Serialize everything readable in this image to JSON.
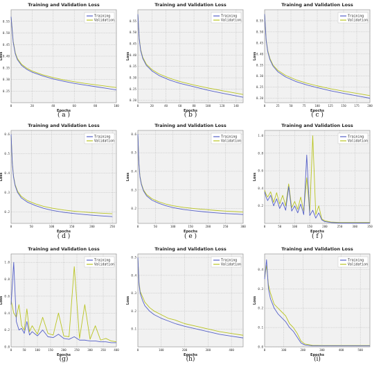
{
  "chart_data": [
    {
      "type": "line",
      "panel": "a",
      "caption": "( a )",
      "title": "Training and Validation Loss",
      "xlabel": "Epochs",
      "ylabel": "Loss",
      "xlim": [
        0,
        100
      ],
      "ylim": [
        0.2,
        0.6
      ],
      "xticks": [
        0,
        20,
        40,
        60,
        80,
        100
      ],
      "yticks": [
        0.25,
        0.3,
        0.35,
        0.4,
        0.45,
        0.5,
        0.55
      ],
      "ytick_labels": [
        "0.25",
        "0.30",
        "0.35",
        "0.40",
        "0.45",
        "0.50",
        "0.55"
      ],
      "legend_position": "top-right",
      "grid": true,
      "series": [
        {
          "name": "Training",
          "color": "#5560c8",
          "x": [
            0,
            2,
            4,
            6,
            10,
            15,
            20,
            30,
            40,
            50,
            60,
            70,
            80,
            90,
            100
          ],
          "values": [
            0.57,
            0.46,
            0.41,
            0.385,
            0.36,
            0.343,
            0.331,
            0.315,
            0.302,
            0.292,
            0.283,
            0.276,
            0.269,
            0.262,
            0.255
          ]
        },
        {
          "name": "Validation",
          "color": "#b9c421",
          "x": [
            0,
            2,
            4,
            6,
            10,
            15,
            20,
            30,
            40,
            50,
            60,
            70,
            80,
            90,
            100
          ],
          "values": [
            0.57,
            0.465,
            0.415,
            0.39,
            0.365,
            0.348,
            0.336,
            0.32,
            0.308,
            0.298,
            0.29,
            0.283,
            0.277,
            0.271,
            0.265
          ]
        }
      ]
    },
    {
      "type": "line",
      "panel": "b",
      "caption": "( b )",
      "title": "Training and Validation Loss",
      "xlabel": "Epochs",
      "ylabel": "Loss",
      "xlim": [
        0,
        150
      ],
      "ylim": [
        0.19,
        0.6
      ],
      "xticks": [
        0,
        20,
        40,
        60,
        80,
        100,
        120,
        140
      ],
      "yticks": [
        0.2,
        0.25,
        0.3,
        0.35,
        0.4,
        0.45,
        0.5,
        0.55
      ],
      "ytick_labels": [
        "0.20",
        "0.25",
        "0.30",
        "0.35",
        "0.40",
        "0.45",
        "0.50",
        "0.55"
      ],
      "legend_position": "top-right",
      "grid": true,
      "series": [
        {
          "name": "Training",
          "color": "#5560c8",
          "x": [
            0,
            2,
            4,
            7,
            12,
            20,
            30,
            45,
            60,
            80,
            100,
            120,
            140,
            150
          ],
          "values": [
            0.58,
            0.47,
            0.42,
            0.385,
            0.355,
            0.33,
            0.31,
            0.29,
            0.275,
            0.26,
            0.245,
            0.232,
            0.22,
            0.214
          ]
        },
        {
          "name": "Validation",
          "color": "#b9c421",
          "x": [
            0,
            2,
            4,
            7,
            12,
            20,
            30,
            45,
            60,
            80,
            100,
            120,
            140,
            150
          ],
          "values": [
            0.58,
            0.475,
            0.425,
            0.39,
            0.36,
            0.336,
            0.317,
            0.298,
            0.283,
            0.268,
            0.255,
            0.243,
            0.232,
            0.226
          ]
        }
      ]
    },
    {
      "type": "line",
      "panel": "c",
      "caption": "( c )",
      "title": "Training and Validation Loss",
      "xlabel": "Epochs",
      "ylabel": "Loss",
      "xlim": [
        0,
        200
      ],
      "ylim": [
        0.18,
        0.6
      ],
      "xticks": [
        0,
        25,
        50,
        75,
        100,
        125,
        150,
        175,
        200
      ],
      "yticks": [
        0.2,
        0.25,
        0.3,
        0.35,
        0.4,
        0.45,
        0.5,
        0.55
      ],
      "ytick_labels": [
        "0.20",
        "0.25",
        "0.30",
        "0.35",
        "0.40",
        "0.45",
        "0.50",
        "0.55"
      ],
      "legend_position": "top-right",
      "grid": true,
      "series": [
        {
          "name": "Training",
          "color": "#5560c8",
          "x": [
            0,
            3,
            6,
            10,
            16,
            25,
            40,
            60,
            80,
            100,
            125,
            150,
            175,
            200
          ],
          "values": [
            0.58,
            0.46,
            0.41,
            0.375,
            0.345,
            0.32,
            0.296,
            0.275,
            0.26,
            0.248,
            0.234,
            0.222,
            0.211,
            0.2
          ]
        },
        {
          "name": "Validation",
          "color": "#b9c421",
          "x": [
            0,
            3,
            6,
            10,
            16,
            25,
            40,
            60,
            80,
            100,
            125,
            150,
            175,
            200
          ],
          "values": [
            0.58,
            0.465,
            0.415,
            0.38,
            0.35,
            0.326,
            0.303,
            0.283,
            0.268,
            0.256,
            0.243,
            0.232,
            0.222,
            0.212
          ]
        }
      ]
    },
    {
      "type": "line",
      "panel": "d",
      "caption": "( d )",
      "title": "Training and Validation Loss",
      "xlabel": "Epochs",
      "ylabel": "Loss",
      "xlim": [
        0,
        260
      ],
      "ylim": [
        0.14,
        0.62
      ],
      "xticks": [
        0,
        50,
        100,
        150,
        200,
        250
      ],
      "yticks": [
        0.2,
        0.3,
        0.4,
        0.5,
        0.6
      ],
      "ytick_labels": [
        "0.2",
        "0.3",
        "0.4",
        "0.5",
        "0.6"
      ],
      "legend_position": "top-right",
      "grid": true,
      "series": [
        {
          "name": "Training",
          "color": "#5560c8",
          "x": [
            0,
            3,
            6,
            10,
            16,
            25,
            40,
            60,
            80,
            100,
            130,
            160,
            190,
            220,
            250
          ],
          "values": [
            0.6,
            0.45,
            0.38,
            0.335,
            0.3,
            0.272,
            0.25,
            0.232,
            0.218,
            0.208,
            0.197,
            0.19,
            0.184,
            0.179,
            0.175
          ]
        },
        {
          "name": "Validation",
          "color": "#b9c421",
          "x": [
            0,
            3,
            6,
            10,
            16,
            25,
            40,
            60,
            80,
            100,
            130,
            160,
            190,
            220,
            250
          ],
          "values": [
            0.6,
            0.455,
            0.385,
            0.34,
            0.306,
            0.28,
            0.258,
            0.241,
            0.228,
            0.219,
            0.209,
            0.202,
            0.197,
            0.193,
            0.19
          ]
        }
      ]
    },
    {
      "type": "line",
      "panel": "e",
      "caption": "( e )",
      "title": "Training and Validation Loss",
      "xlabel": "Epochs",
      "ylabel": "Loss",
      "xlim": [
        0,
        300
      ],
      "ylim": [
        0.12,
        0.62
      ],
      "xticks": [
        0,
        50,
        100,
        150,
        200,
        250,
        300
      ],
      "yticks": [
        0.2,
        0.3,
        0.4,
        0.5,
        0.6
      ],
      "ytick_labels": [
        "0.2",
        "0.3",
        "0.4",
        "0.5",
        "0.6"
      ],
      "legend_position": "top-right",
      "grid": true,
      "series": [
        {
          "name": "Training",
          "color": "#5560c8",
          "x": [
            0,
            3,
            6,
            10,
            16,
            25,
            40,
            60,
            80,
            100,
            130,
            160,
            190,
            220,
            250,
            280,
            300
          ],
          "values": [
            0.6,
            0.44,
            0.37,
            0.33,
            0.295,
            0.268,
            0.245,
            0.228,
            0.215,
            0.205,
            0.195,
            0.188,
            0.182,
            0.177,
            0.173,
            0.17,
            0.168
          ]
        },
        {
          "name": "Validation",
          "color": "#b9c421",
          "x": [
            0,
            3,
            6,
            10,
            16,
            25,
            40,
            60,
            80,
            100,
            130,
            160,
            190,
            220,
            250,
            280,
            300
          ],
          "values": [
            0.6,
            0.445,
            0.375,
            0.335,
            0.3,
            0.275,
            0.253,
            0.236,
            0.224,
            0.215,
            0.206,
            0.2,
            0.195,
            0.19,
            0.186,
            0.183,
            0.181
          ]
        }
      ]
    },
    {
      "type": "line",
      "panel": "f",
      "caption": "( f )",
      "title": "Training and Validation Loss",
      "xlabel": "Epochs",
      "ylabel": "Loss",
      "xlim": [
        0,
        350
      ],
      "ylim": [
        0,
        1.06
      ],
      "xticks": [
        0,
        50,
        100,
        150,
        200,
        250,
        300,
        350
      ],
      "yticks": [
        0.2,
        0.4,
        0.6,
        0.8,
        1.0
      ],
      "ytick_labels": [
        "0.2",
        "0.4",
        "0.6",
        "0.8",
        "1.0"
      ],
      "legend_position": "top-right",
      "grid": true,
      "series": [
        {
          "name": "Training",
          "color": "#5560c8",
          "x": [
            0,
            5,
            10,
            20,
            30,
            40,
            50,
            60,
            70,
            80,
            90,
            100,
            110,
            120,
            130,
            140,
            150,
            160,
            170,
            180,
            190,
            200,
            220,
            250,
            300,
            350
          ],
          "values": [
            0.36,
            0.3,
            0.26,
            0.32,
            0.2,
            0.28,
            0.17,
            0.24,
            0.15,
            0.42,
            0.14,
            0.2,
            0.12,
            0.22,
            0.1,
            0.78,
            0.09,
            0.15,
            0.06,
            0.12,
            0.04,
            0.02,
            0.01,
            0.005,
            0.005,
            0.005
          ]
        },
        {
          "name": "Validation",
          "color": "#b9c421",
          "x": [
            0,
            5,
            10,
            20,
            30,
            40,
            50,
            60,
            70,
            80,
            90,
            100,
            110,
            120,
            130,
            140,
            150,
            160,
            170,
            180,
            190,
            200,
            220,
            250,
            300,
            350
          ],
          "values": [
            0.38,
            0.33,
            0.3,
            0.36,
            0.24,
            0.35,
            0.22,
            0.32,
            0.2,
            0.45,
            0.18,
            0.25,
            0.16,
            0.3,
            0.14,
            0.52,
            0.12,
            1.0,
            0.1,
            0.2,
            0.05,
            0.03,
            0.015,
            0.01,
            0.01,
            0.01
          ]
        }
      ]
    },
    {
      "type": "line",
      "panel": "g",
      "caption": "(g)",
      "title": "Training and Validation Loss",
      "xlabel": "Epochs",
      "ylabel": "Loss",
      "xlim": [
        0,
        400
      ],
      "ylim": [
        0,
        1.1
      ],
      "xticks": [
        0,
        50,
        100,
        150,
        200,
        250,
        300,
        350,
        400
      ],
      "yticks": [
        0.0,
        0.2,
        0.4,
        0.6,
        0.8,
        1.0
      ],
      "ytick_labels": [
        "0.0",
        "0.2",
        "0.4",
        "0.6",
        "0.8",
        "1.0"
      ],
      "legend_position": "top-right",
      "grid": true,
      "series": [
        {
          "name": "Training",
          "color": "#5560c8",
          "x": [
            0,
            10,
            20,
            30,
            40,
            50,
            60,
            70,
            80,
            100,
            120,
            140,
            160,
            180,
            200,
            220,
            240,
            260,
            280,
            300,
            320,
            340,
            360,
            380,
            400
          ],
          "values": [
            0.5,
            1.0,
            0.3,
            0.2,
            0.22,
            0.16,
            0.3,
            0.14,
            0.18,
            0.13,
            0.2,
            0.12,
            0.11,
            0.15,
            0.1,
            0.09,
            0.12,
            0.08,
            0.08,
            0.07,
            0.07,
            0.06,
            0.06,
            0.05,
            0.05
          ]
        },
        {
          "name": "Validation",
          "color": "#b9c421",
          "x": [
            0,
            10,
            20,
            30,
            40,
            50,
            60,
            70,
            80,
            100,
            120,
            140,
            160,
            180,
            200,
            220,
            240,
            260,
            280,
            300,
            320,
            340,
            360,
            380,
            400
          ],
          "values": [
            0.55,
            0.4,
            0.35,
            0.5,
            0.25,
            0.2,
            0.45,
            0.18,
            0.25,
            0.15,
            0.35,
            0.16,
            0.14,
            0.4,
            0.13,
            0.12,
            0.95,
            0.1,
            0.5,
            0.09,
            0.25,
            0.08,
            0.1,
            0.07,
            0.06
          ]
        }
      ]
    },
    {
      "type": "line",
      "panel": "h",
      "caption": "(h)",
      "title": "Training and Validation Loss",
      "xlabel": "Epochs",
      "ylabel": "Loss",
      "xlim": [
        0,
        450
      ],
      "ylim": [
        0.0,
        0.52
      ],
      "xticks": [
        0,
        100,
        200,
        300,
        400
      ],
      "yticks": [
        0.1,
        0.2,
        0.3,
        0.4,
        0.5
      ],
      "ytick_labels": [
        "0.1",
        "0.2",
        "0.3",
        "0.4",
        "0.5"
      ],
      "legend_position": "top-right",
      "grid": true,
      "series": [
        {
          "name": "Training",
          "color": "#5560c8",
          "x": [
            0,
            5,
            10,
            20,
            30,
            50,
            70,
            100,
            130,
            160,
            200,
            250,
            300,
            350,
            400,
            450
          ],
          "values": [
            0.5,
            0.35,
            0.3,
            0.26,
            0.23,
            0.2,
            0.18,
            0.16,
            0.145,
            0.13,
            0.115,
            0.1,
            0.085,
            0.07,
            0.06,
            0.05
          ]
        },
        {
          "name": "Validation",
          "color": "#b9c421",
          "x": [
            0,
            5,
            10,
            20,
            30,
            50,
            70,
            100,
            130,
            160,
            200,
            250,
            300,
            350,
            400,
            450
          ],
          "values": [
            0.5,
            0.36,
            0.31,
            0.28,
            0.25,
            0.22,
            0.2,
            0.18,
            0.16,
            0.15,
            0.13,
            0.115,
            0.1,
            0.085,
            0.075,
            0.065
          ]
        }
      ]
    },
    {
      "type": "line",
      "panel": "i",
      "caption": "(i)",
      "title": "Training and Validation Loss",
      "xlabel": "Epochs",
      "ylabel": "Loss",
      "xlim": [
        0,
        550
      ],
      "ylim": [
        0,
        0.48
      ],
      "xticks": [
        0,
        100,
        200,
        300,
        400,
        500
      ],
      "yticks": [
        0.0,
        0.1,
        0.2,
        0.3,
        0.4
      ],
      "ytick_labels": [
        "0.0",
        "0.1",
        "0.2",
        "0.3",
        "0.4"
      ],
      "legend_position": "top-right",
      "grid": true,
      "series": [
        {
          "name": "Training",
          "color": "#5560c8",
          "x": [
            0,
            10,
            20,
            30,
            50,
            70,
            90,
            110,
            130,
            150,
            170,
            190,
            210,
            250,
            300,
            400,
            550
          ],
          "values": [
            0.35,
            0.45,
            0.3,
            0.25,
            0.2,
            0.17,
            0.15,
            0.13,
            0.1,
            0.08,
            0.05,
            0.02,
            0.01,
            0.005,
            0.005,
            0.005,
            0.005
          ]
        },
        {
          "name": "Validation",
          "color": "#b9c421",
          "x": [
            0,
            10,
            20,
            30,
            50,
            70,
            90,
            110,
            130,
            150,
            170,
            190,
            210,
            250,
            300,
            400,
            550
          ],
          "values": [
            0.36,
            0.42,
            0.32,
            0.28,
            0.22,
            0.2,
            0.18,
            0.16,
            0.12,
            0.1,
            0.07,
            0.03,
            0.015,
            0.008,
            0.007,
            0.007,
            0.007
          ]
        }
      ]
    }
  ]
}
